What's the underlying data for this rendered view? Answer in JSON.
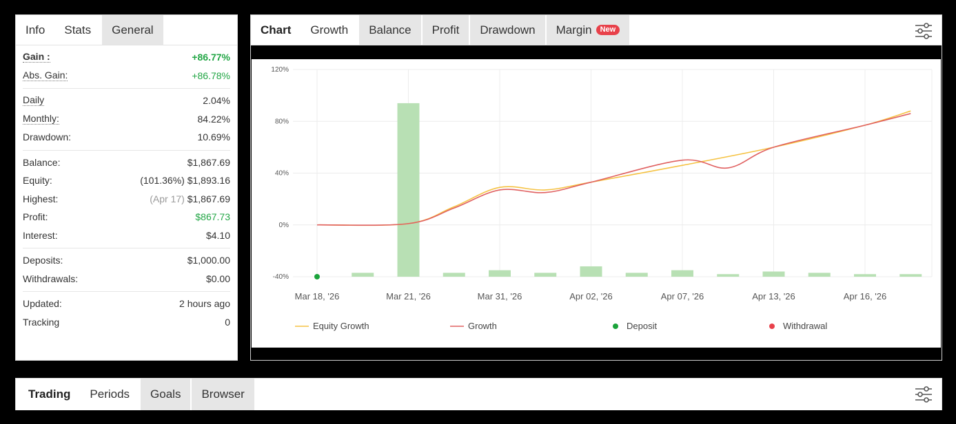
{
  "stats_panel": {
    "tabs": [
      {
        "label": "Info"
      },
      {
        "label": "Stats"
      },
      {
        "label": "General"
      }
    ],
    "gain": {
      "label": "Gain :",
      "value": "+86.77%"
    },
    "abs_gain": {
      "label": "Abs. Gain:",
      "value": "+86.78%"
    },
    "daily": {
      "label": "Daily",
      "value": "2.04%"
    },
    "monthly": {
      "label": "Monthly:",
      "value": "84.22%"
    },
    "drawdown": {
      "label": "Drawdown:",
      "value": "10.69%"
    },
    "balance": {
      "label": "Balance:",
      "value": "$1,867.69"
    },
    "equity": {
      "label": "Equity:",
      "note": "(101.36%)",
      "value": "$1,893.16"
    },
    "highest": {
      "label": "Highest:",
      "note": "(Apr 17)",
      "value": "$1,867.69"
    },
    "profit": {
      "label": "Profit:",
      "value": "$867.73"
    },
    "interest": {
      "label": "Interest:",
      "value": "$4.10"
    },
    "deposits": {
      "label": "Deposits:",
      "value": "$1,000.00"
    },
    "withdrawals": {
      "label": "Withdrawals:",
      "value": "$0.00"
    },
    "updated": {
      "label": "Updated:",
      "value": "2 hours ago"
    },
    "tracking": {
      "label": "Tracking",
      "value": "0"
    }
  },
  "chart_panel": {
    "tabs": [
      {
        "label": "Chart"
      },
      {
        "label": "Growth"
      },
      {
        "label": "Balance"
      },
      {
        "label": "Profit"
      },
      {
        "label": "Drawdown"
      },
      {
        "label": "Margin",
        "badge": "New"
      }
    ],
    "settings_icon": "sliders-icon"
  },
  "trading_panel": {
    "tabs": [
      {
        "label": "Trading"
      },
      {
        "label": "Periods"
      },
      {
        "label": "Goals"
      },
      {
        "label": "Browser"
      }
    ],
    "settings_icon": "sliders-icon"
  },
  "colors": {
    "equity_growth": "#f5c242",
    "growth": "#e06060",
    "deposit": "#1aa33a",
    "withdrawal": "#e8414a",
    "bars": "#b8e0b4",
    "positive": "#22a645"
  },
  "chart_data": {
    "type": "line",
    "x": [
      "Mar 18, '26",
      "Mar 21, '26",
      "Mar 31, '26",
      "Apr 02, '26",
      "Apr 07, '26",
      "Apr 13, '26",
      "Apr 16, '26"
    ],
    "ylim": [
      -40,
      120
    ],
    "yticks": [
      "120%",
      "80%",
      "40%",
      "0%",
      "-40%"
    ],
    "ytick_values": [
      120,
      80,
      40,
      0,
      -40
    ],
    "series": [
      {
        "name": "Equity Growth",
        "points": [
          [
            0,
            0
          ],
          [
            1,
            1
          ],
          [
            1.5,
            14
          ],
          [
            2,
            29
          ],
          [
            2.5,
            27
          ],
          [
            3,
            33
          ],
          [
            4,
            46
          ],
          [
            5,
            60
          ],
          [
            6,
            77
          ],
          [
            6.5,
            88
          ]
        ]
      },
      {
        "name": "Growth",
        "points": [
          [
            0,
            0
          ],
          [
            1,
            1
          ],
          [
            1.5,
            13
          ],
          [
            2,
            27
          ],
          [
            2.5,
            25
          ],
          [
            3,
            33
          ],
          [
            4,
            50
          ],
          [
            4.5,
            44
          ],
          [
            5,
            60
          ],
          [
            6,
            77
          ],
          [
            6.5,
            86
          ]
        ]
      }
    ],
    "bars": [
      {
        "x": 0.5,
        "value": -37
      },
      {
        "x": 1,
        "value": 94
      },
      {
        "x": 1.5,
        "value": -37
      },
      {
        "x": 2,
        "value": -35
      },
      {
        "x": 2.5,
        "value": -37
      },
      {
        "x": 3,
        "value": -32
      },
      {
        "x": 3.5,
        "value": -37
      },
      {
        "x": 4,
        "value": -35
      },
      {
        "x": 4.5,
        "value": -38
      },
      {
        "x": 5,
        "value": -36
      },
      {
        "x": 5.5,
        "value": -37
      },
      {
        "x": 6,
        "value": -38
      },
      {
        "x": 6.5,
        "value": -38
      }
    ],
    "deposit_markers": [
      {
        "x": 0,
        "value": -40
      }
    ],
    "legend": [
      {
        "label": "Equity Growth",
        "kind": "line",
        "color": "#f5c242"
      },
      {
        "label": "Growth",
        "kind": "line",
        "color": "#e06060"
      },
      {
        "label": "Deposit",
        "kind": "dot",
        "color": "#1aa33a"
      },
      {
        "label": "Withdrawal",
        "kind": "dot",
        "color": "#e8414a"
      }
    ],
    "legend_position": "bottom",
    "grid": true
  }
}
